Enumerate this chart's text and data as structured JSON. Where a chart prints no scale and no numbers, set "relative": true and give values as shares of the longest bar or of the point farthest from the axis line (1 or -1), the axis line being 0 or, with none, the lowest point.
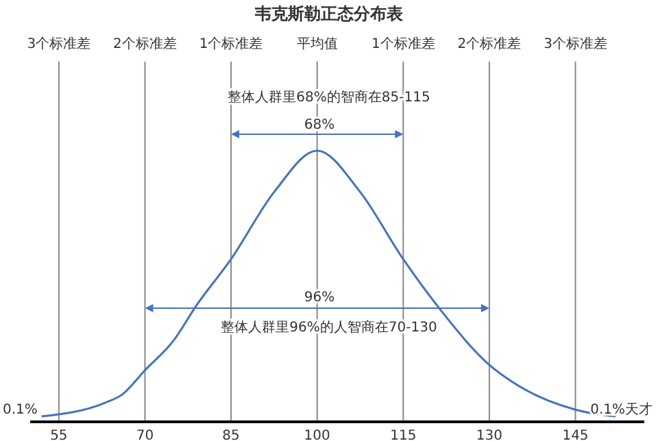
{
  "chart_data": {
    "type": "line",
    "title": "韦克斯勒正态分布表",
    "relative": true,
    "x": [
      52,
      63,
      66,
      70,
      75,
      79,
      85,
      92.6,
      100,
      107.4,
      115,
      121.6,
      130,
      133.8,
      145,
      152
    ],
    "series": [
      {
        "color": "#4472c4",
        "values": [
          0.02,
          0.07,
          0.1,
          0.19,
          0.3,
          0.43,
          0.6,
          0.85,
          1,
          0.85,
          0.6,
          0.41,
          0.21,
          0.15,
          0.045,
          0.02
        ]
      }
    ],
    "xlim": [
      50,
      157
    ],
    "xticks": [
      55,
      70,
      85,
      100,
      115,
      130,
      145
    ],
    "ref_lines": [
      {
        "axis": "x",
        "value": 55,
        "label": "3个标准差"
      },
      {
        "axis": "x",
        "value": 70,
        "label": "2个标准差"
      },
      {
        "axis": "x",
        "value": 85,
        "label": "1个标准差"
      },
      {
        "axis": "x",
        "value": 100,
        "label": "平均值"
      },
      {
        "axis": "x",
        "value": 115,
        "label": "1个标准差"
      },
      {
        "axis": "x",
        "value": 130,
        "label": "2个标准差"
      },
      {
        "axis": "x",
        "value": 145,
        "label": "3个标准差"
      }
    ],
    "marker": "none",
    "line_style": "solid",
    "annotations": [
      "整体人群里68%的智商在85-115",
      "68%",
      "96%",
      "整体人群里96%的人智商在70-130",
      "0.1%",
      "0.1%天才"
    ]
  }
}
